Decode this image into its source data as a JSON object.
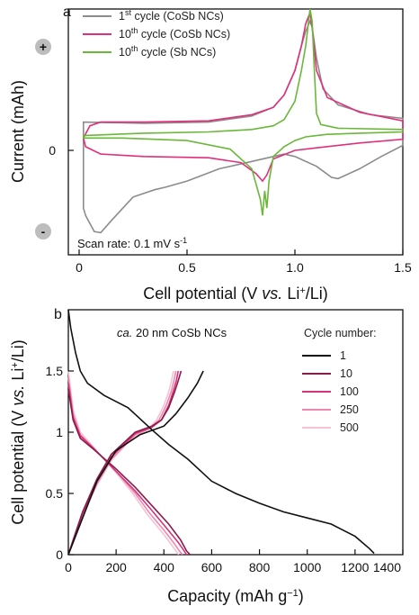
{
  "chart_data": [
    {
      "panel": "a",
      "type": "line",
      "xlabel": "Cell potential (V vs. Li+/Li)",
      "ylabel": "Current (mAh)",
      "xlim": [
        -0.05,
        1.5
      ],
      "ylim": [
        -1.0,
        1.0
      ],
      "x_ticks": [
        "0",
        "0.5",
        "1.0",
        "1.5"
      ],
      "y_ticks": [
        "0"
      ],
      "sign_markers": {
        "top": "+",
        "bottom": "-"
      },
      "annotation": "Scan rate: 0.1 mV s",
      "annotation_sup": "-1",
      "legend": [
        {
          "prefix": "1",
          "sup": "st",
          "text": "cycle (CoSb NCs)",
          "color": "#8c8c8c"
        },
        {
          "prefix": "10",
          "sup": "th",
          "text": "cycle (CoSb NCs)",
          "color": "#e0307a"
        },
        {
          "prefix": "10",
          "sup": "th",
          "text": "cycle (Sb NCs)",
          "color": "#6ab83a"
        }
      ],
      "series": [
        {
          "color": "#8c8c8c",
          "points": [
            [
              0.02,
              0.08
            ],
            [
              0.3,
              0.07
            ],
            [
              0.6,
              0.08
            ],
            [
              0.8,
              0.13
            ],
            [
              0.9,
              0.2
            ],
            [
              0.95,
              0.3
            ],
            [
              1.0,
              0.5
            ],
            [
              1.03,
              0.7
            ],
            [
              1.05,
              0.82
            ],
            [
              1.07,
              0.9
            ],
            [
              1.08,
              0.85
            ],
            [
              1.1,
              0.6
            ],
            [
              1.13,
              0.35
            ],
            [
              1.2,
              0.22
            ],
            [
              1.35,
              0.14
            ],
            [
              1.5,
              0.11
            ],
            [
              1.5,
              -0.11
            ],
            [
              1.4,
              -0.2
            ],
            [
              1.3,
              -0.3
            ],
            [
              1.2,
              -0.38
            ],
            [
              1.17,
              -0.37
            ],
            [
              1.1,
              -0.28
            ],
            [
              1.0,
              -0.2
            ],
            [
              0.95,
              -0.18
            ],
            [
              0.9,
              -0.2
            ],
            [
              0.8,
              -0.24
            ],
            [
              0.65,
              -0.3
            ],
            [
              0.5,
              -0.4
            ],
            [
              0.4,
              -0.45
            ],
            [
              0.35,
              -0.47
            ],
            [
              0.25,
              -0.53
            ],
            [
              0.15,
              -0.72
            ],
            [
              0.1,
              -0.82
            ],
            [
              0.07,
              -0.81
            ],
            [
              0.03,
              -0.68
            ],
            [
              0.02,
              -0.62
            ]
          ]
        },
        {
          "color": "#e0307a",
          "points": [
            [
              0.02,
              -0.05
            ],
            [
              0.05,
              0.05
            ],
            [
              0.1,
              0.08
            ],
            [
              0.3,
              0.08
            ],
            [
              0.6,
              0.09
            ],
            [
              0.8,
              0.14
            ],
            [
              0.9,
              0.2
            ],
            [
              0.95,
              0.3
            ],
            [
              1.0,
              0.5
            ],
            [
              1.03,
              0.7
            ],
            [
              1.05,
              0.88
            ],
            [
              1.07,
              0.97
            ],
            [
              1.08,
              0.85
            ],
            [
              1.1,
              0.5
            ],
            [
              1.15,
              0.28
            ],
            [
              1.3,
              0.16
            ],
            [
              1.5,
              0.09
            ],
            [
              1.5,
              -0.06
            ],
            [
              1.3,
              -0.09
            ],
            [
              1.1,
              -0.13
            ],
            [
              1.0,
              -0.15
            ],
            [
              0.9,
              -0.22
            ],
            [
              0.87,
              -0.35
            ],
            [
              0.85,
              -0.4
            ],
            [
              0.82,
              -0.34
            ],
            [
              0.75,
              -0.25
            ],
            [
              0.6,
              -0.21
            ],
            [
              0.3,
              -0.2
            ],
            [
              0.1,
              -0.18
            ],
            [
              0.03,
              -0.12
            ],
            [
              0.02,
              -0.05
            ]
          ]
        },
        {
          "color": "#6ab83a",
          "points": [
            [
              0.02,
              -0.03
            ],
            [
              0.3,
              -0.01
            ],
            [
              0.6,
              0.0
            ],
            [
              0.8,
              0.02
            ],
            [
              0.9,
              0.05
            ],
            [
              0.95,
              0.1
            ],
            [
              1.0,
              0.25
            ],
            [
              1.03,
              0.5
            ],
            [
              1.05,
              0.7
            ],
            [
              1.06,
              0.85
            ],
            [
              1.07,
              1.0
            ],
            [
              1.08,
              0.9
            ],
            [
              1.09,
              0.5
            ],
            [
              1.1,
              0.15
            ],
            [
              1.12,
              0.06
            ],
            [
              1.2,
              0.03
            ],
            [
              1.5,
              0.02
            ],
            [
              1.5,
              0.0
            ],
            [
              1.3,
              -0.01
            ],
            [
              1.15,
              -0.02
            ],
            [
              1.1,
              -0.03
            ],
            [
              1.05,
              -0.04
            ],
            [
              1.0,
              -0.07
            ],
            [
              0.95,
              -0.12
            ],
            [
              0.9,
              -0.2
            ],
            [
              0.88,
              -0.4
            ],
            [
              0.87,
              -0.62
            ],
            [
              0.86,
              -0.48
            ],
            [
              0.85,
              -0.68
            ],
            [
              0.84,
              -0.55
            ],
            [
              0.8,
              -0.3
            ],
            [
              0.7,
              -0.14
            ],
            [
              0.5,
              -0.07
            ],
            [
              0.2,
              -0.05
            ],
            [
              0.02,
              -0.05
            ]
          ]
        }
      ]
    },
    {
      "panel": "b",
      "type": "line",
      "xlabel": "Capacity (mAh g",
      "xlabel_sup": "−1",
      "xlabel_end": ")",
      "ylabel": "Cell potential (V vs. Li+/Li)",
      "xlim": [
        0,
        1400
      ],
      "ylim": [
        0,
        2.0
      ],
      "x_ticks": [
        0,
        200,
        400,
        600,
        800,
        1000,
        1200,
        1400
      ],
      "y_ticks": [
        "0",
        "0.5",
        "1",
        "1.5"
      ],
      "annotation_italic": "ca.",
      "annotation": "20 nm CoSb NCs",
      "legend_title": "Cycle number:",
      "series": [
        {
          "name": "1",
          "color": "#111111",
          "points": [
            [
              0,
              2.0
            ],
            [
              10,
              1.85
            ],
            [
              30,
              1.65
            ],
            [
              50,
              1.5
            ],
            [
              80,
              1.4
            ],
            [
              150,
              1.3
            ],
            [
              250,
              1.2
            ],
            [
              350,
              1.02
            ],
            [
              420,
              0.9
            ],
            [
              500,
              0.78
            ],
            [
              600,
              0.6
            ],
            [
              700,
              0.5
            ],
            [
              800,
              0.42
            ],
            [
              900,
              0.35
            ],
            [
              1000,
              0.3
            ],
            [
              1100,
              0.25
            ],
            [
              1200,
              0.15
            ],
            [
              1260,
              0.05
            ],
            [
              1280,
              0.01
            ]
          ],
          "charge": [
            [
              0,
              0.0
            ],
            [
              20,
              0.1
            ],
            [
              60,
              0.3
            ],
            [
              120,
              0.6
            ],
            [
              200,
              0.85
            ],
            [
              300,
              0.98
            ],
            [
              400,
              1.05
            ],
            [
              450,
              1.15
            ],
            [
              500,
              1.28
            ],
            [
              540,
              1.4
            ],
            [
              565,
              1.5
            ]
          ]
        },
        {
          "name": "10",
          "color": "#8a1c4a",
          "points": [
            [
              0,
              1.35
            ],
            [
              20,
              1.1
            ],
            [
              50,
              0.95
            ],
            [
              100,
              0.87
            ],
            [
              200,
              0.7
            ],
            [
              280,
              0.55
            ],
            [
              350,
              0.4
            ],
            [
              420,
              0.25
            ],
            [
              470,
              0.12
            ],
            [
              495,
              0.03
            ],
            [
              510,
              0.0
            ]
          ],
          "charge": [
            [
              0,
              0.0
            ],
            [
              20,
              0.12
            ],
            [
              60,
              0.35
            ],
            [
              120,
              0.62
            ],
            [
              180,
              0.82
            ],
            [
              280,
              1.0
            ],
            [
              350,
              1.05
            ],
            [
              390,
              1.1
            ],
            [
              420,
              1.2
            ],
            [
              445,
              1.33
            ],
            [
              460,
              1.42
            ],
            [
              472,
              1.5
            ]
          ]
        },
        {
          "name": "100",
          "color": "#d6337a",
          "points": [
            [
              0,
              1.4
            ],
            [
              20,
              1.12
            ],
            [
              50,
              0.97
            ],
            [
              100,
              0.88
            ],
            [
              200,
              0.68
            ],
            [
              280,
              0.52
            ],
            [
              350,
              0.36
            ],
            [
              410,
              0.22
            ],
            [
              460,
              0.1
            ],
            [
              485,
              0.03
            ],
            [
              495,
              0.0
            ]
          ],
          "charge": [
            [
              0,
              0.0
            ],
            [
              20,
              0.11
            ],
            [
              60,
              0.34
            ],
            [
              120,
              0.6
            ],
            [
              180,
              0.8
            ],
            [
              280,
              0.99
            ],
            [
              350,
              1.04
            ],
            [
              390,
              1.1
            ],
            [
              420,
              1.22
            ],
            [
              440,
              1.34
            ],
            [
              452,
              1.42
            ],
            [
              460,
              1.5
            ]
          ]
        },
        {
          "name": "250",
          "color": "#ef88ad",
          "points": [
            [
              0,
              1.45
            ],
            [
              20,
              1.15
            ],
            [
              50,
              0.98
            ],
            [
              100,
              0.88
            ],
            [
              200,
              0.68
            ],
            [
              280,
              0.5
            ],
            [
              340,
              0.34
            ],
            [
              400,
              0.2
            ],
            [
              440,
              0.1
            ],
            [
              465,
              0.03
            ],
            [
              478,
              0.0
            ]
          ],
          "charge": [
            [
              0,
              0.0
            ],
            [
              20,
              0.1
            ],
            [
              60,
              0.33
            ],
            [
              120,
              0.58
            ],
            [
              180,
              0.78
            ],
            [
              280,
              0.98
            ],
            [
              340,
              1.03
            ],
            [
              380,
              1.1
            ],
            [
              410,
              1.22
            ],
            [
              430,
              1.33
            ],
            [
              442,
              1.42
            ],
            [
              450,
              1.5
            ]
          ]
        },
        {
          "name": "500",
          "color": "#f7c2d4",
          "points": [
            [
              0,
              1.5
            ],
            [
              20,
              1.18
            ],
            [
              50,
              1.0
            ],
            [
              100,
              0.89
            ],
            [
              200,
              0.67
            ],
            [
              270,
              0.5
            ],
            [
              330,
              0.33
            ],
            [
              385,
              0.2
            ],
            [
              425,
              0.1
            ],
            [
              450,
              0.03
            ],
            [
              462,
              0.0
            ]
          ],
          "charge": [
            [
              0,
              0.0
            ],
            [
              20,
              0.1
            ],
            [
              60,
              0.32
            ],
            [
              120,
              0.57
            ],
            [
              180,
              0.77
            ],
            [
              270,
              0.96
            ],
            [
              330,
              1.02
            ],
            [
              370,
              1.1
            ],
            [
              400,
              1.22
            ],
            [
              420,
              1.33
            ],
            [
              432,
              1.42
            ],
            [
              440,
              1.5
            ]
          ]
        }
      ]
    }
  ]
}
